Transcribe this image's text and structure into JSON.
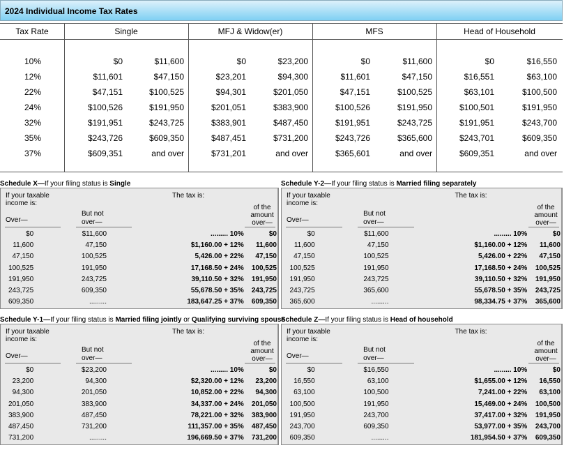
{
  "banner": {
    "title": "2024 Individual Income Tax Rates"
  },
  "rates_table": {
    "headers": [
      "Tax Rate",
      "Single",
      "MFJ & Widow(er)",
      "MFS",
      "Head of Household"
    ],
    "rows": [
      [
        "10%",
        "$0",
        "$11,600",
        "$0",
        "$23,200",
        "$0",
        "$11,600",
        "$0",
        "$16,550"
      ],
      [
        "12%",
        "$11,601",
        "$47,150",
        "$23,201",
        "$94,300",
        "$11,601",
        "$47,150",
        "$16,551",
        "$63,100"
      ],
      [
        "22%",
        "$47,151",
        "$100,525",
        "$94,301",
        "$201,050",
        "$47,151",
        "$100,525",
        "$63,101",
        "$100,500"
      ],
      [
        "24%",
        "$100,526",
        "$191,950",
        "$201,051",
        "$383,900",
        "$100,526",
        "$191,950",
        "$100,501",
        "$191,950"
      ],
      [
        "32%",
        "$191,951",
        "$243,725",
        "$383,901",
        "$487,450",
        "$191,951",
        "$243,725",
        "$191,951",
        "$243,700"
      ],
      [
        "35%",
        "$243,726",
        "$609,350",
        "$487,451",
        "$731,200",
        "$243,726",
        "$365,600",
        "$243,701",
        "$609,350"
      ],
      [
        "37%",
        "$609,351",
        "and over",
        "$731,201",
        "and over",
        "$365,601",
        "and over",
        "$609,351",
        "and over"
      ]
    ]
  },
  "labels": {
    "if_taxable": "If your taxable",
    "income_is": "income is:",
    "tax_is": "The tax is:",
    "over": "Over—",
    "but_not": "But not",
    "over2": "over—",
    "of_the": "of the",
    "amount": "amount",
    "over3": "over—"
  },
  "schedules": [
    {
      "prefix": "Schedule X—",
      "mid": "If your filing status is ",
      "status": "Single",
      "suffix": "",
      "rows": [
        [
          "$0",
          "$11,600",
          "......... 10%",
          "$0"
        ],
        [
          "11,600",
          "47,150",
          "$1,160.00 + 12%",
          "11,600"
        ],
        [
          "47,150",
          "100,525",
          "5,426.00 + 22%",
          "47,150"
        ],
        [
          "100,525",
          "191,950",
          "17,168.50 + 24%",
          "100,525"
        ],
        [
          "191,950",
          "243,725",
          "39,110.50 + 32%",
          "191,950"
        ],
        [
          "243,725",
          "609,350",
          "55,678.50 + 35%",
          "243,725"
        ],
        [
          "609,350",
          ".........",
          "183,647.25 + 37%",
          "609,350"
        ]
      ]
    },
    {
      "prefix": "Schedule Y-2—",
      "mid": "If your filing status is ",
      "status": "Married filing separately",
      "suffix": "",
      "rows": [
        [
          "$0",
          "$11,600",
          "......... 10%",
          "$0"
        ],
        [
          "11,600",
          "47,150",
          "$1,160.00 + 12%",
          "11,600"
        ],
        [
          "47,150",
          "100,525",
          "5,426.00 + 22%",
          "47,150"
        ],
        [
          "100,525",
          "191,950",
          "17,168.50 + 24%",
          "100,525"
        ],
        [
          "191,950",
          "243,725",
          "39,110.50 + 32%",
          "191,950"
        ],
        [
          "243,725",
          "365,600",
          "55,678.50 + 35%",
          "243,725"
        ],
        [
          "365,600",
          ".........",
          "98,334.75 + 37%",
          "365,600"
        ]
      ]
    },
    {
      "prefix": "Schedule Y-1—",
      "mid": "If your filing status is ",
      "status": "Married filing jointly",
      "suffix": " or ",
      "status2": "Qualifying surviving spouse",
      "rows": [
        [
          "$0",
          "$23,200",
          "......... 10%",
          "$0"
        ],
        [
          "23,200",
          "94,300",
          "$2,320.00 + 12%",
          "23,200"
        ],
        [
          "94,300",
          "201,050",
          "10,852.00 + 22%",
          "94,300"
        ],
        [
          "201,050",
          "383,900",
          "34,337.00 + 24%",
          "201,050"
        ],
        [
          "383,900",
          "487,450",
          "78,221.00 + 32%",
          "383,900"
        ],
        [
          "487,450",
          "731,200",
          "111,357.00 + 35%",
          "487,450"
        ],
        [
          "731,200",
          ".........",
          "196,669.50 + 37%",
          "731,200"
        ]
      ]
    },
    {
      "prefix": "Schedule Z—",
      "mid": "If your filing status is ",
      "status": "Head of household",
      "suffix": "",
      "rows": [
        [
          "$0",
          "$16,550",
          "......... 10%",
          "$0"
        ],
        [
          "16,550",
          "63,100",
          "$1,655.00 + 12%",
          "16,550"
        ],
        [
          "63,100",
          "100,500",
          "7,241.00 + 22%",
          "63,100"
        ],
        [
          "100,500",
          "191,950",
          "15,469.00 + 24%",
          "100,500"
        ],
        [
          "191,950",
          "243,700",
          "37,417.00 + 32%",
          "191,950"
        ],
        [
          "243,700",
          "609,350",
          "53,977.00 + 35%",
          "243,700"
        ],
        [
          "609,350",
          ".........",
          "181,954.50 + 37%",
          "609,350"
        ]
      ]
    }
  ]
}
